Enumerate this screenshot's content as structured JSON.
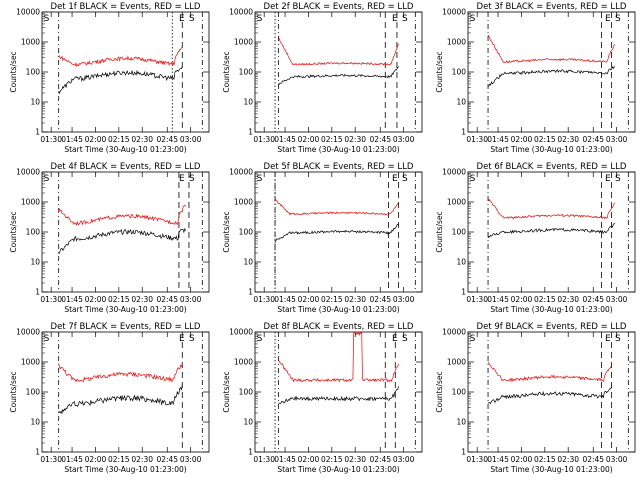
{
  "colors": {
    "events": "#000000",
    "lld": "#ff0000",
    "axes": "#000000",
    "background": "#ffffff"
  },
  "common": {
    "xlabel": "Start Time (30-Aug-10 01:23:00)",
    "ylabel": "Counts/sec",
    "xticks": [
      "01:30",
      "01:45",
      "02:00",
      "02:15",
      "02:30",
      "02:45",
      "03:00"
    ],
    "yticks": [
      "1",
      "10",
      "100",
      "1000",
      "10000"
    ]
  },
  "chart_data": [
    {
      "type": "line",
      "title": "Det 1f BLACK = Events, RED = LLD",
      "xlabel": "Start Time (30-Aug-10 01:23:00)",
      "ylabel": "Counts/sec",
      "yscale": "log",
      "ylim": [
        1,
        10000
      ],
      "markers": [
        "S",
        "E",
        "S"
      ],
      "series": [
        {
          "name": "Events",
          "color": "#000000"
        },
        {
          "name": "LLD",
          "color": "#ff0000"
        }
      ]
    },
    {
      "type": "line",
      "title": "Det 2f BLACK = Events, RED = LLD",
      "xlabel": "Start Time (30-Aug-10 01:23:00)",
      "ylabel": "Counts/sec",
      "yscale": "log",
      "ylim": [
        1,
        10000
      ],
      "markers": [
        "S",
        "E",
        "S"
      ],
      "series": [
        {
          "name": "Events",
          "color": "#000000"
        },
        {
          "name": "LLD",
          "color": "#ff0000"
        }
      ]
    },
    {
      "type": "line",
      "title": "Det 3f BLACK = Events, RED = LLD",
      "xlabel": "Start Time (30-Aug-10 01:23:00)",
      "ylabel": "Counts/sec",
      "yscale": "log",
      "ylim": [
        1,
        10000
      ],
      "markers": [
        "S",
        "E",
        "S"
      ],
      "series": [
        {
          "name": "Events",
          "color": "#000000"
        },
        {
          "name": "LLD",
          "color": "#ff0000"
        }
      ]
    },
    {
      "type": "line",
      "title": "Det 4f BLACK = Events, RED = LLD",
      "xlabel": "Start Time (30-Aug-10 01:23:00)",
      "ylabel": "Counts/sec",
      "yscale": "log",
      "ylim": [
        1,
        10000
      ],
      "markers": [
        "S",
        "E",
        "S"
      ],
      "series": [
        {
          "name": "Events",
          "color": "#000000"
        },
        {
          "name": "LLD",
          "color": "#ff0000"
        }
      ]
    },
    {
      "type": "line",
      "title": "Det 5f BLACK = Events, RED = LLD",
      "xlabel": "Start Time (30-Aug-10 01:23:00)",
      "ylabel": "Counts/sec",
      "yscale": "log",
      "ylim": [
        1,
        10000
      ],
      "markers": [
        "S",
        "E",
        "S"
      ],
      "series": [
        {
          "name": "Events",
          "color": "#000000"
        },
        {
          "name": "LLD",
          "color": "#ff0000"
        }
      ]
    },
    {
      "type": "line",
      "title": "Det 6f BLACK = Events, RED = LLD",
      "xlabel": "Start Time (30-Aug-10 01:23:00)",
      "ylabel": "Counts/sec",
      "yscale": "log",
      "ylim": [
        1,
        10000
      ],
      "markers": [
        "S",
        "E",
        "S"
      ],
      "series": [
        {
          "name": "Events",
          "color": "#000000"
        },
        {
          "name": "LLD",
          "color": "#ff0000"
        }
      ]
    },
    {
      "type": "line",
      "title": "Det 7f BLACK = Events, RED = LLD",
      "xlabel": "Start Time (30-Aug-10 01:23:00)",
      "ylabel": "Counts/sec",
      "yscale": "log",
      "ylim": [
        1,
        10000
      ],
      "markers": [
        "S",
        "E",
        "S"
      ],
      "series": [
        {
          "name": "Events",
          "color": "#000000"
        },
        {
          "name": "LLD",
          "color": "#ff0000"
        }
      ]
    },
    {
      "type": "line",
      "title": "Det 8f BLACK = Events, RED = LLD",
      "xlabel": "Start Time (30-Aug-10 01:23:00)",
      "ylabel": "Counts/sec",
      "yscale": "log",
      "ylim": [
        1,
        10000
      ],
      "markers": [
        "S",
        "E",
        "S"
      ],
      "series": [
        {
          "name": "Events",
          "color": "#000000"
        },
        {
          "name": "LLD",
          "color": "#ff0000"
        }
      ]
    },
    {
      "type": "line",
      "title": "Det 9f BLACK = Events, RED = LLD",
      "xlabel": "Start Time (30-Aug-10 01:23:00)",
      "ylabel": "Counts/sec",
      "yscale": "log",
      "ylim": [
        1,
        10000
      ],
      "markers": [
        "S",
        "E",
        "S"
      ],
      "series": [
        {
          "name": "Events",
          "color": "#000000"
        },
        {
          "name": "LLD",
          "color": "#ff0000"
        }
      ]
    }
  ]
}
